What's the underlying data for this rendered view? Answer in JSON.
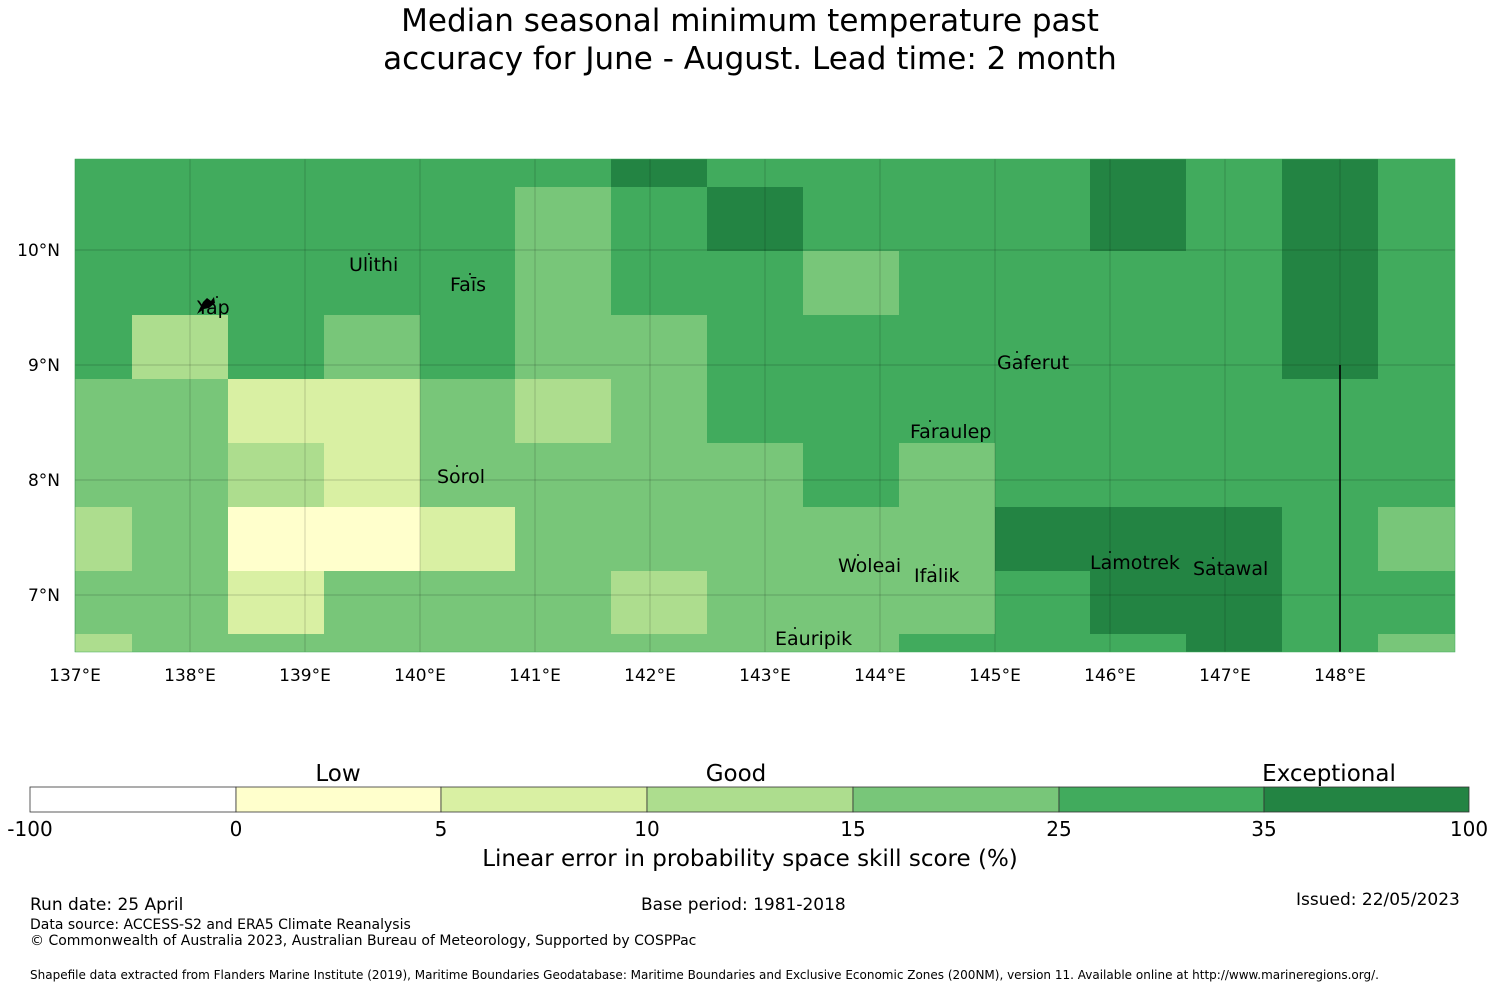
{
  "title_line1": "Median seasonal minimum temperature past",
  "title_line2": "accuracy for June - August. Lead time: 2 month",
  "map": {
    "x_ticks": [
      "137°E",
      "138°E",
      "139°E",
      "140°E",
      "141°E",
      "142°E",
      "143°E",
      "144°E",
      "145°E",
      "146°E",
      "147°E",
      "148°E"
    ],
    "y_ticks": [
      "10°N",
      "9°N",
      "8°N",
      "7°N"
    ],
    "islands": [
      "Ulithi",
      "Yap",
      "Faīs",
      "Gaferut",
      "Faraulep",
      "Sorol",
      "Woleai",
      "Ifalik",
      "Lamotrek",
      "Satawal",
      "Eauripik"
    ],
    "grid_lines": true
  },
  "colors": {
    "c0": "#ffffff",
    "c1": "#ffffcc",
    "c2": "#d9f0a3",
    "c3": "#addd8e",
    "c4": "#78c679",
    "c5": "#41ab5d",
    "c6": "#238443"
  },
  "colorbar": {
    "categories": [
      "Low",
      "Good",
      "Exceptional"
    ],
    "ticks": [
      "-100",
      "0",
      "5",
      "10",
      "15",
      "25",
      "35",
      "100"
    ],
    "label": "Linear error in probability space skill score (%)"
  },
  "footer": {
    "run_date": "Run date: 25 April",
    "base_period": "Base period: 1981-2018",
    "issued": "Issued: 22/05/2023",
    "data_source": "Data source: ACCESS-S2 and ERA5 Climate Reanalysis",
    "copyright": "© Commonwealth of Australia 2023, Australian Bureau of Meteorology, Supported by COSPPac",
    "shapefile": "Shapefile data extracted from Flanders Marine Institute (2019), Maritime Boundaries Geodatabase: Maritime Boundaries and Exclusive Economic Zones (200NM), version 11. Available online at http://www.marineregions.org/."
  }
}
